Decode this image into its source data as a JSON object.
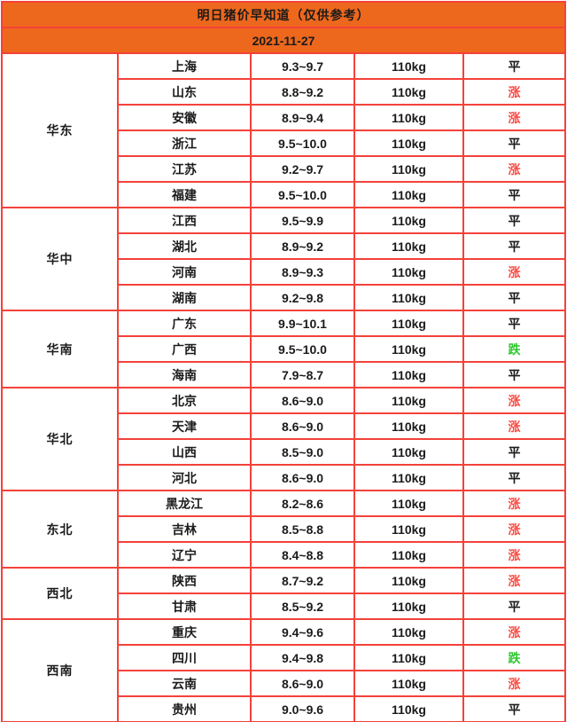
{
  "colors": {
    "header_bg": "#ed671d",
    "border": "#f4423a",
    "text": "#1b1b1b"
  },
  "trend_colors": {
    "平": "#1b1b1b",
    "涨": "#f94a42",
    "跌": "#2fc82f"
  },
  "chart_data": {
    "type": "table",
    "title": "明日猪价早知道（仅供参考）",
    "subtitle": "2021-11-27",
    "column_keys": [
      "region",
      "province",
      "price",
      "weight",
      "trend"
    ],
    "groups": [
      {
        "region": "华东",
        "rows": [
          {
            "province": "上海",
            "price": "9.3~9.7",
            "weight": "110kg",
            "trend": "平"
          },
          {
            "province": "山东",
            "price": "8.8~9.2",
            "weight": "110kg",
            "trend": "涨"
          },
          {
            "province": "安徽",
            "price": "8.9~9.4",
            "weight": "110kg",
            "trend": "涨"
          },
          {
            "province": "浙江",
            "price": "9.5~10.0",
            "weight": "110kg",
            "trend": "平"
          },
          {
            "province": "江苏",
            "price": "9.2~9.7",
            "weight": "110kg",
            "trend": "涨"
          },
          {
            "province": "福建",
            "price": "9.5~10.0",
            "weight": "110kg",
            "trend": "平"
          }
        ]
      },
      {
        "region": "华中",
        "rows": [
          {
            "province": "江西",
            "price": "9.5~9.9",
            "weight": "110kg",
            "trend": "平"
          },
          {
            "province": "湖北",
            "price": "8.9~9.2",
            "weight": "110kg",
            "trend": "平"
          },
          {
            "province": "河南",
            "price": "8.9~9.3",
            "weight": "110kg",
            "trend": "涨"
          },
          {
            "province": "湖南",
            "price": "9.2~9.8",
            "weight": "110kg",
            "trend": "平"
          }
        ]
      },
      {
        "region": "华南",
        "rows": [
          {
            "province": "广东",
            "price": "9.9~10.1",
            "weight": "110kg",
            "trend": "平"
          },
          {
            "province": "广西",
            "price": "9.5~10.0",
            "weight": "110kg",
            "trend": "跌"
          },
          {
            "province": "海南",
            "price": "7.9~8.7",
            "weight": "110kg",
            "trend": "平"
          }
        ]
      },
      {
        "region": "华北",
        "rows": [
          {
            "province": "北京",
            "price": "8.6~9.0",
            "weight": "110kg",
            "trend": "涨"
          },
          {
            "province": "天津",
            "price": "8.6~9.0",
            "weight": "110kg",
            "trend": "涨"
          },
          {
            "province": "山西",
            "price": "8.5~9.0",
            "weight": "110kg",
            "trend": "平"
          },
          {
            "province": "河北",
            "price": "8.6~9.0",
            "weight": "110kg",
            "trend": "平"
          }
        ]
      },
      {
        "region": "东北",
        "rows": [
          {
            "province": "黑龙江",
            "price": "8.2~8.6",
            "weight": "110kg",
            "trend": "涨"
          },
          {
            "province": "吉林",
            "price": "8.5~8.8",
            "weight": "110kg",
            "trend": "涨"
          },
          {
            "province": "辽宁",
            "price": "8.4~8.8",
            "weight": "110kg",
            "trend": "涨"
          }
        ]
      },
      {
        "region": "西北",
        "rows": [
          {
            "province": "陕西",
            "price": "8.7~9.2",
            "weight": "110kg",
            "trend": "涨"
          },
          {
            "province": "甘肃",
            "price": "8.5~9.2",
            "weight": "110kg",
            "trend": "平"
          }
        ]
      },
      {
        "region": "西南",
        "rows": [
          {
            "province": "重庆",
            "price": "9.4~9.6",
            "weight": "110kg",
            "trend": "涨"
          },
          {
            "province": "四川",
            "price": "9.4~9.8",
            "weight": "110kg",
            "trend": "跌"
          },
          {
            "province": "云南",
            "price": "8.6~9.0",
            "weight": "110kg",
            "trend": "涨"
          },
          {
            "province": "贵州",
            "price": "9.0~9.6",
            "weight": "110kg",
            "trend": "平"
          }
        ]
      }
    ]
  }
}
